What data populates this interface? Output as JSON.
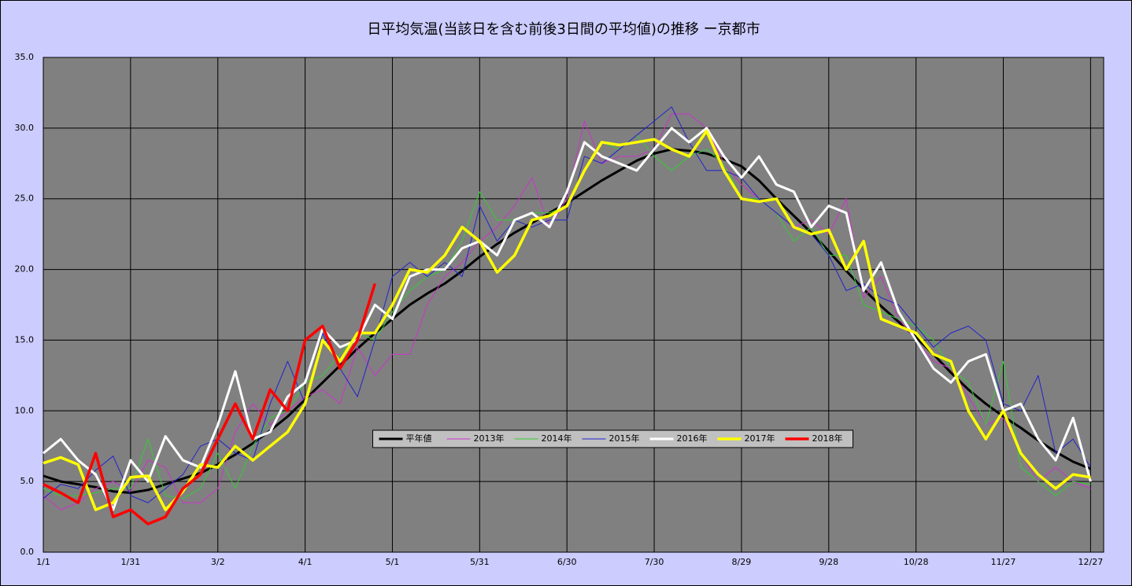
{
  "chart_data": {
    "type": "line",
    "title": "日平均気温(当該日を含む前後3日間の平均値)の推移 ー京都市",
    "x": [
      1,
      7,
      13,
      19,
      25,
      31,
      37,
      43,
      49,
      55,
      61,
      67,
      73,
      79,
      85,
      91,
      97,
      103,
      109,
      115,
      121,
      127,
      133,
      139,
      145,
      151,
      157,
      163,
      169,
      175,
      181,
      187,
      193,
      199,
      205,
      211,
      217,
      223,
      229,
      235,
      241,
      247,
      253,
      259,
      265,
      271,
      277,
      283,
      289,
      295,
      301,
      307,
      313,
      319,
      325,
      331,
      337,
      343,
      349,
      355,
      361
    ],
    "series": [
      {
        "name": "平年値",
        "color": "#000000",
        "width": 3,
        "values": [
          5.4,
          5.0,
          4.8,
          4.6,
          4.3,
          4.2,
          4.4,
          4.8,
          5.2,
          5.6,
          6.2,
          6.9,
          7.7,
          8.6,
          9.6,
          10.8,
          12.0,
          13.2,
          14.4,
          15.5,
          16.5,
          17.5,
          18.3,
          19.0,
          19.9,
          20.9,
          21.8,
          22.6,
          23.3,
          24.0,
          24.7,
          25.5,
          26.3,
          27.0,
          27.7,
          28.2,
          28.5,
          28.4,
          28.2,
          27.8,
          27.3,
          26.3,
          25.0,
          23.8,
          22.6,
          21.3,
          19.9,
          18.6,
          17.4,
          16.3,
          15.2,
          14.0,
          12.7,
          11.5,
          10.5,
          9.6,
          8.8,
          7.9,
          7.1,
          6.4,
          5.9
        ]
      },
      {
        "name": "2013年",
        "color": "#cc33cc",
        "width": 1,
        "values": [
          4.0,
          3.0,
          3.5,
          4.5,
          5.0,
          4.3,
          6.5,
          6.0,
          3.5,
          3.5,
          4.5,
          8.5,
          10.5,
          9.0,
          10.0,
          11.0,
          11.5,
          10.5,
          14.5,
          12.5,
          14.0,
          14.0,
          17.5,
          19.5,
          20.5,
          22.0,
          23.0,
          24.5,
          26.5,
          23.0,
          25.0,
          30.5,
          27.5,
          28.0,
          28.0,
          28.5,
          31.0,
          31.0,
          30.0,
          27.5,
          26.0,
          25.0,
          24.0,
          23.0,
          23.5,
          22.5,
          25.0,
          18.0,
          19.5,
          16.5,
          15.0,
          13.5,
          13.0,
          11.0,
          9.0,
          9.5,
          7.0,
          5.0,
          6.0,
          5.0,
          4.5
        ]
      },
      {
        "name": "2014年",
        "color": "#33cc33",
        "width": 1,
        "values": [
          4.5,
          4.0,
          4.0,
          4.2,
          4.5,
          4.5,
          8.0,
          4.0,
          3.8,
          4.5,
          7.0,
          4.5,
          7.5,
          9.5,
          10.0,
          12.0,
          12.5,
          14.0,
          15.5,
          15.0,
          17.0,
          18.5,
          19.5,
          20.0,
          22.0,
          25.5,
          23.5,
          23.5,
          24.0,
          24.0,
          24.5,
          27.0,
          29.0,
          28.5,
          29.5,
          28.0,
          27.0,
          28.0,
          28.5,
          27.5,
          25.0,
          25.0,
          24.0,
          22.0,
          23.0,
          21.0,
          21.0,
          17.5,
          17.0,
          16.5,
          16.0,
          15.0,
          13.0,
          12.0,
          9.0,
          13.5,
          6.0,
          5.0,
          4.0,
          5.0,
          4.8
        ]
      },
      {
        "name": "2015年",
        "color": "#2222cc",
        "width": 1,
        "values": [
          3.8,
          4.8,
          4.5,
          5.8,
          6.8,
          4.0,
          3.5,
          4.5,
          5.5,
          7.5,
          8.0,
          7.0,
          6.5,
          10.5,
          13.5,
          10.5,
          15.5,
          13.0,
          11.0,
          15.0,
          19.5,
          20.5,
          19.5,
          20.5,
          19.5,
          24.5,
          22.0,
          23.5,
          23.0,
          23.5,
          23.5,
          28.0,
          27.5,
          28.5,
          29.5,
          30.5,
          31.5,
          29.0,
          27.0,
          27.0,
          26.5,
          25.0,
          24.0,
          23.0,
          22.5,
          21.0,
          18.5,
          19.0,
          18.0,
          17.5,
          16.0,
          14.5,
          15.5,
          16.0,
          15.0,
          10.5,
          10.0,
          12.5,
          7.0,
          8.0,
          6.0
        ]
      },
      {
        "name": "2016年",
        "color": "#ffffff",
        "width": 3,
        "values": [
          7.0,
          8.0,
          6.5,
          5.5,
          3.0,
          6.5,
          5.0,
          8.2,
          6.5,
          6.0,
          9.0,
          12.8,
          8.0,
          8.5,
          11.0,
          12.0,
          15.8,
          14.5,
          15.0,
          17.5,
          16.5,
          19.5,
          20.0,
          20.0,
          21.5,
          22.0,
          21.0,
          23.5,
          24.0,
          23.0,
          25.5,
          29.0,
          28.0,
          27.5,
          27.0,
          28.5,
          30.0,
          29.0,
          30.0,
          28.0,
          26.5,
          28.0,
          26.0,
          25.5,
          23.0,
          24.5,
          24.0,
          18.5,
          20.5,
          17.0,
          15.0,
          13.0,
          12.0,
          13.5,
          14.0,
          10.0,
          10.5,
          8.0,
          6.5,
          9.5,
          5.0
        ]
      },
      {
        "name": "2017年",
        "color": "#ffff00",
        "width": 3.5,
        "values": [
          6.3,
          6.7,
          6.2,
          3.0,
          3.5,
          5.3,
          5.4,
          3.0,
          4.3,
          6.2,
          6.0,
          7.5,
          6.5,
          7.5,
          8.5,
          10.5,
          15.0,
          13.5,
          15.5,
          15.5,
          17.5,
          20.0,
          19.8,
          21.0,
          23.0,
          22.0,
          19.8,
          21.0,
          23.5,
          23.8,
          24.5,
          27.0,
          29.0,
          28.8,
          29.0,
          29.2,
          28.5,
          28.0,
          29.8,
          27.0,
          25.0,
          24.8,
          25.0,
          23.0,
          22.5,
          22.8,
          20.0,
          22.0,
          16.5,
          16.0,
          15.5,
          14.0,
          13.5,
          10.0,
          8.0,
          10.0,
          7.0,
          5.5,
          4.5,
          5.5,
          5.3
        ]
      },
      {
        "name": "2018年",
        "color": "#ff0000",
        "width": 3.5,
        "values": [
          4.8,
          4.2,
          3.5,
          7.0,
          2.5,
          3.0,
          2.0,
          2.5,
          4.5,
          5.5,
          8.0,
          10.5,
          8.0,
          11.5,
          10.0,
          15.0,
          16.0,
          13.0,
          15.0,
          19.0,
          null,
          null,
          null,
          null,
          null,
          null,
          null,
          null,
          null,
          null,
          null,
          null,
          null,
          null,
          null,
          null,
          null,
          null,
          null,
          null,
          null,
          null,
          null,
          null,
          null,
          null,
          null,
          null,
          null,
          null,
          null,
          null,
          null,
          null,
          null,
          null,
          null,
          null,
          null,
          null,
          null
        ]
      }
    ],
    "xlim": [
      1,
      365.5
    ],
    "xticks": [
      {
        "value": 1,
        "label": "1/1"
      },
      {
        "value": 31,
        "label": "1/31"
      },
      {
        "value": 61,
        "label": "3/2"
      },
      {
        "value": 91,
        "label": "4/1"
      },
      {
        "value": 121,
        "label": "5/1"
      },
      {
        "value": 151,
        "label": "5/31"
      },
      {
        "value": 181,
        "label": "6/30"
      },
      {
        "value": 211,
        "label": "7/30"
      },
      {
        "value": 241,
        "label": "8/29"
      },
      {
        "value": 271,
        "label": "9/28"
      },
      {
        "value": 301,
        "label": "10/28"
      },
      {
        "value": 331,
        "label": "11/27"
      },
      {
        "value": 361,
        "label": "12/27"
      }
    ],
    "ylim": [
      0,
      35
    ],
    "yticks": [
      {
        "value": 0,
        "label": "0.0"
      },
      {
        "value": 5,
        "label": "5.0"
      },
      {
        "value": 10,
        "label": "10.0"
      },
      {
        "value": 15,
        "label": "15.0"
      },
      {
        "value": 20,
        "label": "20.0"
      },
      {
        "value": 25,
        "label": "25.0"
      },
      {
        "value": 30,
        "label": "30.0"
      },
      {
        "value": 35,
        "label": "35.0"
      }
    ],
    "grid": true,
    "legend": "center"
  }
}
